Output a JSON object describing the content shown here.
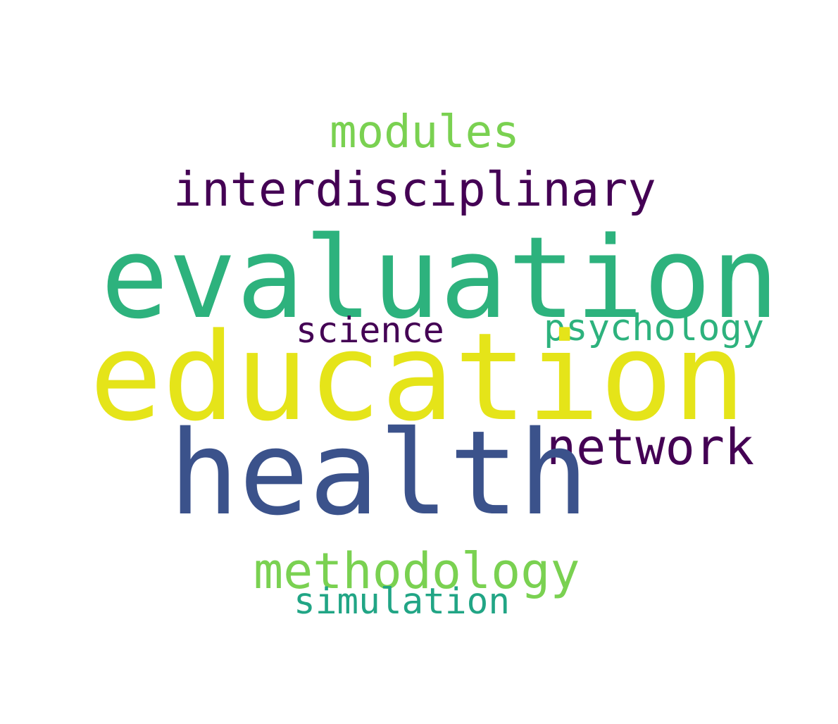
{
  "words": [
    {
      "text": "modules",
      "color": "#7ad151"
    },
    {
      "text": "interdisciplinary",
      "color": "#440154"
    },
    {
      "text": "evaluation",
      "color": "#2db27d"
    },
    {
      "text": "science",
      "color": "#440154"
    },
    {
      "text": "psychology",
      "color": "#2db27d"
    },
    {
      "text": "education",
      "color": "#e5e419"
    },
    {
      "text": "network",
      "color": "#440154"
    },
    {
      "text": "health",
      "color": "#3b528b"
    },
    {
      "text": "methodology",
      "color": "#7ad151"
    },
    {
      "text": "simulation",
      "color": "#21a585"
    }
  ],
  "background_color": "#ffffff"
}
